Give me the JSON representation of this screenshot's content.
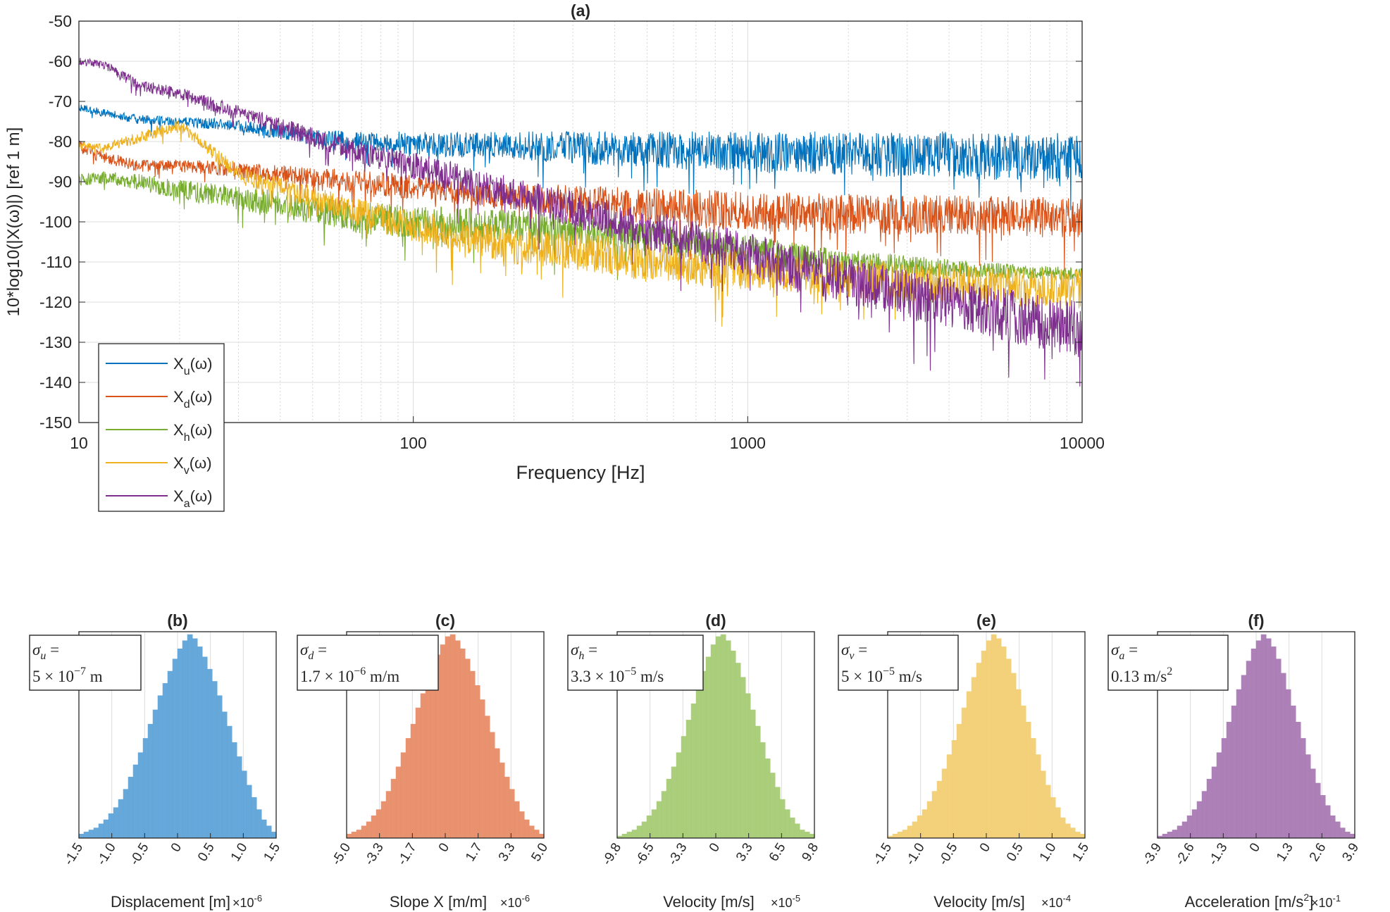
{
  "colors": {
    "u": "#0072BD",
    "d": "#D95319",
    "h": "#77AC30",
    "v": "#EDB120",
    "a": "#7E2F8E",
    "hist_u": "#5EA4D9",
    "hist_d": "#E88D68",
    "hist_h": "#A6CC74",
    "hist_v": "#F3CF74",
    "hist_a": "#A97BB5",
    "grid": "#E0E0E0",
    "axis": "#262626"
  },
  "chart_data": [
    {
      "type": "line",
      "panel": "(a)",
      "title": "(a)",
      "xlabel": "Frequency [Hz]",
      "ylabel": "10*log10(|X(ω)|) [ref 1 m]",
      "xscale": "log",
      "xlim": [
        10,
        10000
      ],
      "ylim": [
        -150,
        -50
      ],
      "xticks": [
        10,
        100,
        1000,
        10000
      ],
      "xtick_labels": [
        "10",
        "100",
        "1000",
        "10000"
      ],
      "yticks": [
        -50,
        -60,
        -70,
        -80,
        -90,
        -100,
        -110,
        -120,
        -130,
        -140,
        -150
      ],
      "ytick_labels": [
        "-50",
        "-60",
        "-70",
        "-80",
        "-90",
        "-100",
        "-110",
        "-120",
        "-130",
        "-140",
        "-150"
      ],
      "grid": true,
      "legend_position": "bottom-left",
      "series": [
        {
          "key": "u",
          "name": "X_u(ω)",
          "legend_base": "X",
          "legend_sub": "u",
          "legend_arg": "(ω)",
          "x": [
            10,
            12,
            15,
            20,
            30,
            50,
            70,
            100,
            200,
            300,
            500,
            1000,
            2000,
            5000,
            10000
          ],
          "y": [
            -71.5,
            -73,
            -74.5,
            -75,
            -76,
            -79,
            -80,
            -80.5,
            -81,
            -81.5,
            -82,
            -82.5,
            -83,
            -83.5,
            -84
          ],
          "noise": [
            1,
            1,
            1.2,
            1.2,
            1.5,
            2,
            2.5,
            3,
            3.5,
            4,
            4.5,
            5,
            5.5,
            6,
            6
          ]
        },
        {
          "key": "d",
          "name": "X_d(ω)",
          "legend_base": "X",
          "legend_sub": "d",
          "legend_arg": "(ω)",
          "x": [
            10,
            12,
            15,
            20,
            30,
            50,
            70,
            100,
            200,
            300,
            500,
            1000,
            2000,
            5000,
            10000
          ],
          "y": [
            -81,
            -84,
            -86,
            -86,
            -87,
            -89,
            -90,
            -91.5,
            -93.5,
            -95,
            -96,
            -97.5,
            -98,
            -98.5,
            -99
          ],
          "noise": [
            1.5,
            1.5,
            1.5,
            1.5,
            2,
            2.5,
            3,
            3,
            3.5,
            4,
            4.5,
            5,
            5,
            5,
            5
          ]
        },
        {
          "key": "h",
          "name": "X_h(ω)",
          "legend_base": "X",
          "legend_sub": "h",
          "legend_arg": "(ω)",
          "x": [
            10,
            12,
            15,
            20,
            30,
            50,
            70,
            100,
            200,
            300,
            500,
            1000,
            2000,
            5000,
            10000
          ],
          "y": [
            -89.5,
            -89,
            -90,
            -92,
            -94,
            -97,
            -99,
            -100,
            -101,
            -102,
            -104,
            -107,
            -110,
            -112,
            -113
          ],
          "noise": [
            1.5,
            1.5,
            2,
            2.5,
            3,
            3.5,
            4,
            4,
            4,
            4,
            4,
            3.5,
            3,
            2,
            1.5
          ]
        },
        {
          "key": "v",
          "name": "X_v(ω)",
          "legend_base": "X",
          "legend_sub": "v",
          "legend_arg": "(ω)",
          "x": [
            10,
            12,
            15,
            20,
            30,
            50,
            70,
            100,
            200,
            300,
            500,
            1000,
            2000,
            5000,
            10000
          ],
          "y": [
            -81,
            -81.5,
            -79,
            -76,
            -88,
            -94,
            -98,
            -101,
            -106,
            -107,
            -110,
            -112,
            -114,
            -116,
            -117
          ],
          "noise": [
            1,
            1,
            1.5,
            1.5,
            2,
            3,
            3.5,
            4,
            4.5,
            5,
            5,
            5,
            5,
            5,
            5
          ]
        },
        {
          "key": "a",
          "name": "X_a(ω)",
          "legend_base": "X",
          "legend_sub": "a",
          "legend_arg": "(ω)",
          "x": [
            10,
            12,
            15,
            20,
            30,
            50,
            70,
            100,
            200,
            300,
            500,
            1000,
            2000,
            5000,
            10000
          ],
          "y": [
            -60,
            -61,
            -66,
            -68,
            -73,
            -79,
            -83,
            -86,
            -93,
            -97,
            -102,
            -108,
            -115,
            -122,
            -127
          ],
          "noise": [
            1,
            1,
            1.5,
            1.5,
            2,
            2.5,
            3,
            3.5,
            4,
            4.5,
            5,
            5.5,
            6,
            6.5,
            7
          ]
        }
      ]
    },
    {
      "type": "bar",
      "panel": "(b)",
      "title": "(b)",
      "key": "u",
      "xlabel": "Displacement [m]",
      "xlabel_sup": "",
      "xlabel_tail": "",
      "multiplier": "×10",
      "multiplier_exp": "-6",
      "xtick_labels": [
        "-1.5",
        "-1.0",
        "-0.5",
        "0",
        "0.5",
        "1.0",
        "1.5"
      ],
      "sigma_sym": "σ",
      "sigma_sub": "u",
      "sigma_value": "5 × 10",
      "sigma_exp": "−7",
      "sigma_unit": " m",
      "bins": 40,
      "values": [
        2,
        3,
        4,
        5,
        7,
        9,
        12,
        15,
        19,
        24,
        30,
        36,
        42,
        49,
        56,
        63,
        70,
        76,
        82,
        88,
        93,
        97,
        100,
        98,
        94,
        89,
        83,
        77,
        70,
        62,
        55,
        47,
        40,
        33,
        26,
        20,
        14,
        9,
        6,
        3
      ]
    },
    {
      "type": "bar",
      "panel": "(c)",
      "title": "(c)",
      "key": "d",
      "xlabel": "Slope X [m/m]",
      "xlabel_sup": "",
      "xlabel_tail": "",
      "multiplier": "×10",
      "multiplier_exp": "-6",
      "xtick_labels": [
        "-5.0",
        "-3.3",
        "-1.7",
        "0",
        "1.7",
        "3.3",
        "5.0"
      ],
      "sigma_sym": "σ",
      "sigma_sub": "d",
      "sigma_value": "1.7 × 10",
      "sigma_exp": "−6",
      "sigma_unit": " m/m",
      "bins": 40,
      "values": [
        2,
        3,
        4,
        6,
        8,
        11,
        14,
        18,
        23,
        29,
        35,
        42,
        49,
        56,
        64,
        71,
        78,
        84,
        90,
        95,
        99,
        100,
        97,
        93,
        88,
        82,
        75,
        68,
        60,
        52,
        44,
        37,
        30,
        24,
        18,
        13,
        9,
        6,
        4,
        2
      ]
    },
    {
      "type": "bar",
      "panel": "(d)",
      "title": "(d)",
      "key": "h",
      "xlabel": "Velocity [m/s]",
      "xlabel_sup": "",
      "xlabel_tail": "",
      "multiplier": "×10",
      "multiplier_exp": "-5",
      "xtick_labels": [
        "-9.8",
        "-6.5",
        "-3.3",
        "0",
        "3.3",
        "6.5",
        "9.8"
      ],
      "sigma_sym": "σ",
      "sigma_sub": "h",
      "sigma_value": "3.3 × 10",
      "sigma_exp": "−5",
      "sigma_unit": " m/s",
      "bins": 40,
      "values": [
        1,
        2,
        3,
        4,
        6,
        8,
        11,
        14,
        18,
        23,
        29,
        35,
        42,
        50,
        58,
        66,
        74,
        82,
        89,
        95,
        99,
        100,
        97,
        92,
        86,
        79,
        71,
        63,
        55,
        47,
        39,
        32,
        25,
        19,
        14,
        10,
        7,
        4,
        3,
        2
      ]
    },
    {
      "type": "bar",
      "panel": "(e)",
      "title": "(e)",
      "key": "v",
      "xlabel": "Velocity [m/s]",
      "xlabel_sup": "",
      "xlabel_tail": "",
      "multiplier": "×10",
      "multiplier_exp": "-4",
      "xtick_labels": [
        "-1.5",
        "-1.0",
        "-0.5",
        "0",
        "0.5",
        "1.0",
        "1.5"
      ],
      "sigma_sym": "σ",
      "sigma_sub": "v",
      "sigma_value": "5 × 10",
      "sigma_exp": "−5",
      "sigma_unit": " m/s",
      "bins": 40,
      "values": [
        1,
        2,
        3,
        4,
        6,
        8,
        11,
        14,
        18,
        23,
        28,
        34,
        41,
        48,
        56,
        64,
        72,
        79,
        86,
        92,
        97,
        100,
        98,
        94,
        88,
        81,
        73,
        65,
        57,
        49,
        41,
        33,
        26,
        20,
        15,
        10,
        7,
        5,
        3,
        2
      ]
    },
    {
      "type": "bar",
      "panel": "(f)",
      "title": "(f)",
      "key": "a",
      "xlabel": "Acceleration [m/s",
      "xlabel_sup": "2",
      "xlabel_tail": "]",
      "multiplier": "×10",
      "multiplier_exp": "-1",
      "xtick_labels": [
        "-3.9",
        "-2.6",
        "-1.3",
        "0",
        "1.3",
        "2.6",
        "3.9"
      ],
      "sigma_sym": "σ",
      "sigma_sub": "a",
      "sigma_value": "0.13 m/s",
      "sigma_exp": "2",
      "sigma_unit": "",
      "bins": 40,
      "values": [
        1,
        2,
        3,
        4,
        6,
        8,
        11,
        14,
        18,
        23,
        29,
        35,
        42,
        49,
        57,
        65,
        73,
        80,
        87,
        93,
        97,
        100,
        98,
        94,
        88,
        81,
        73,
        65,
        57,
        49,
        41,
        34,
        27,
        21,
        16,
        11,
        8,
        5,
        3,
        2
      ]
    }
  ]
}
